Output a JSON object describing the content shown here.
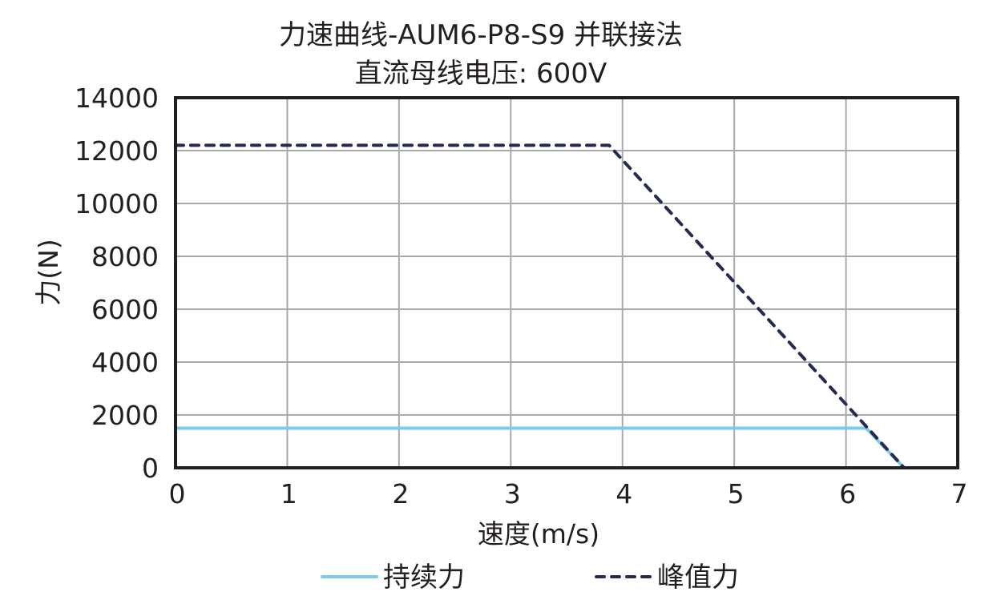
{
  "chart_data": {
    "type": "line",
    "title": "力速曲线-AUM6-P8-S9 并联接法",
    "subtitle": "直流母线电压: 600V",
    "xlabel": "速度(m/s)",
    "ylabel": "力(N)",
    "xlim": [
      0,
      7
    ],
    "ylim": [
      0,
      14000
    ],
    "x_ticks": [
      "0",
      "1",
      "2",
      "3",
      "4",
      "5",
      "6",
      "7"
    ],
    "y_ticks": [
      "0",
      "2000",
      "4000",
      "6000",
      "8000",
      "10000",
      "12000",
      "14000"
    ],
    "grid": true,
    "legend_position": "bottom",
    "series": [
      {
        "name": "持续力",
        "style": "solid",
        "color": "#7ccbea",
        "points": [
          [
            0,
            1500
          ],
          [
            6.18,
            1500
          ],
          [
            6.52,
            0
          ]
        ]
      },
      {
        "name": "峰值力",
        "style": "dashed",
        "color": "#262a50",
        "points": [
          [
            0,
            12200
          ],
          [
            3.88,
            12200
          ],
          [
            6.52,
            0
          ]
        ]
      }
    ]
  }
}
